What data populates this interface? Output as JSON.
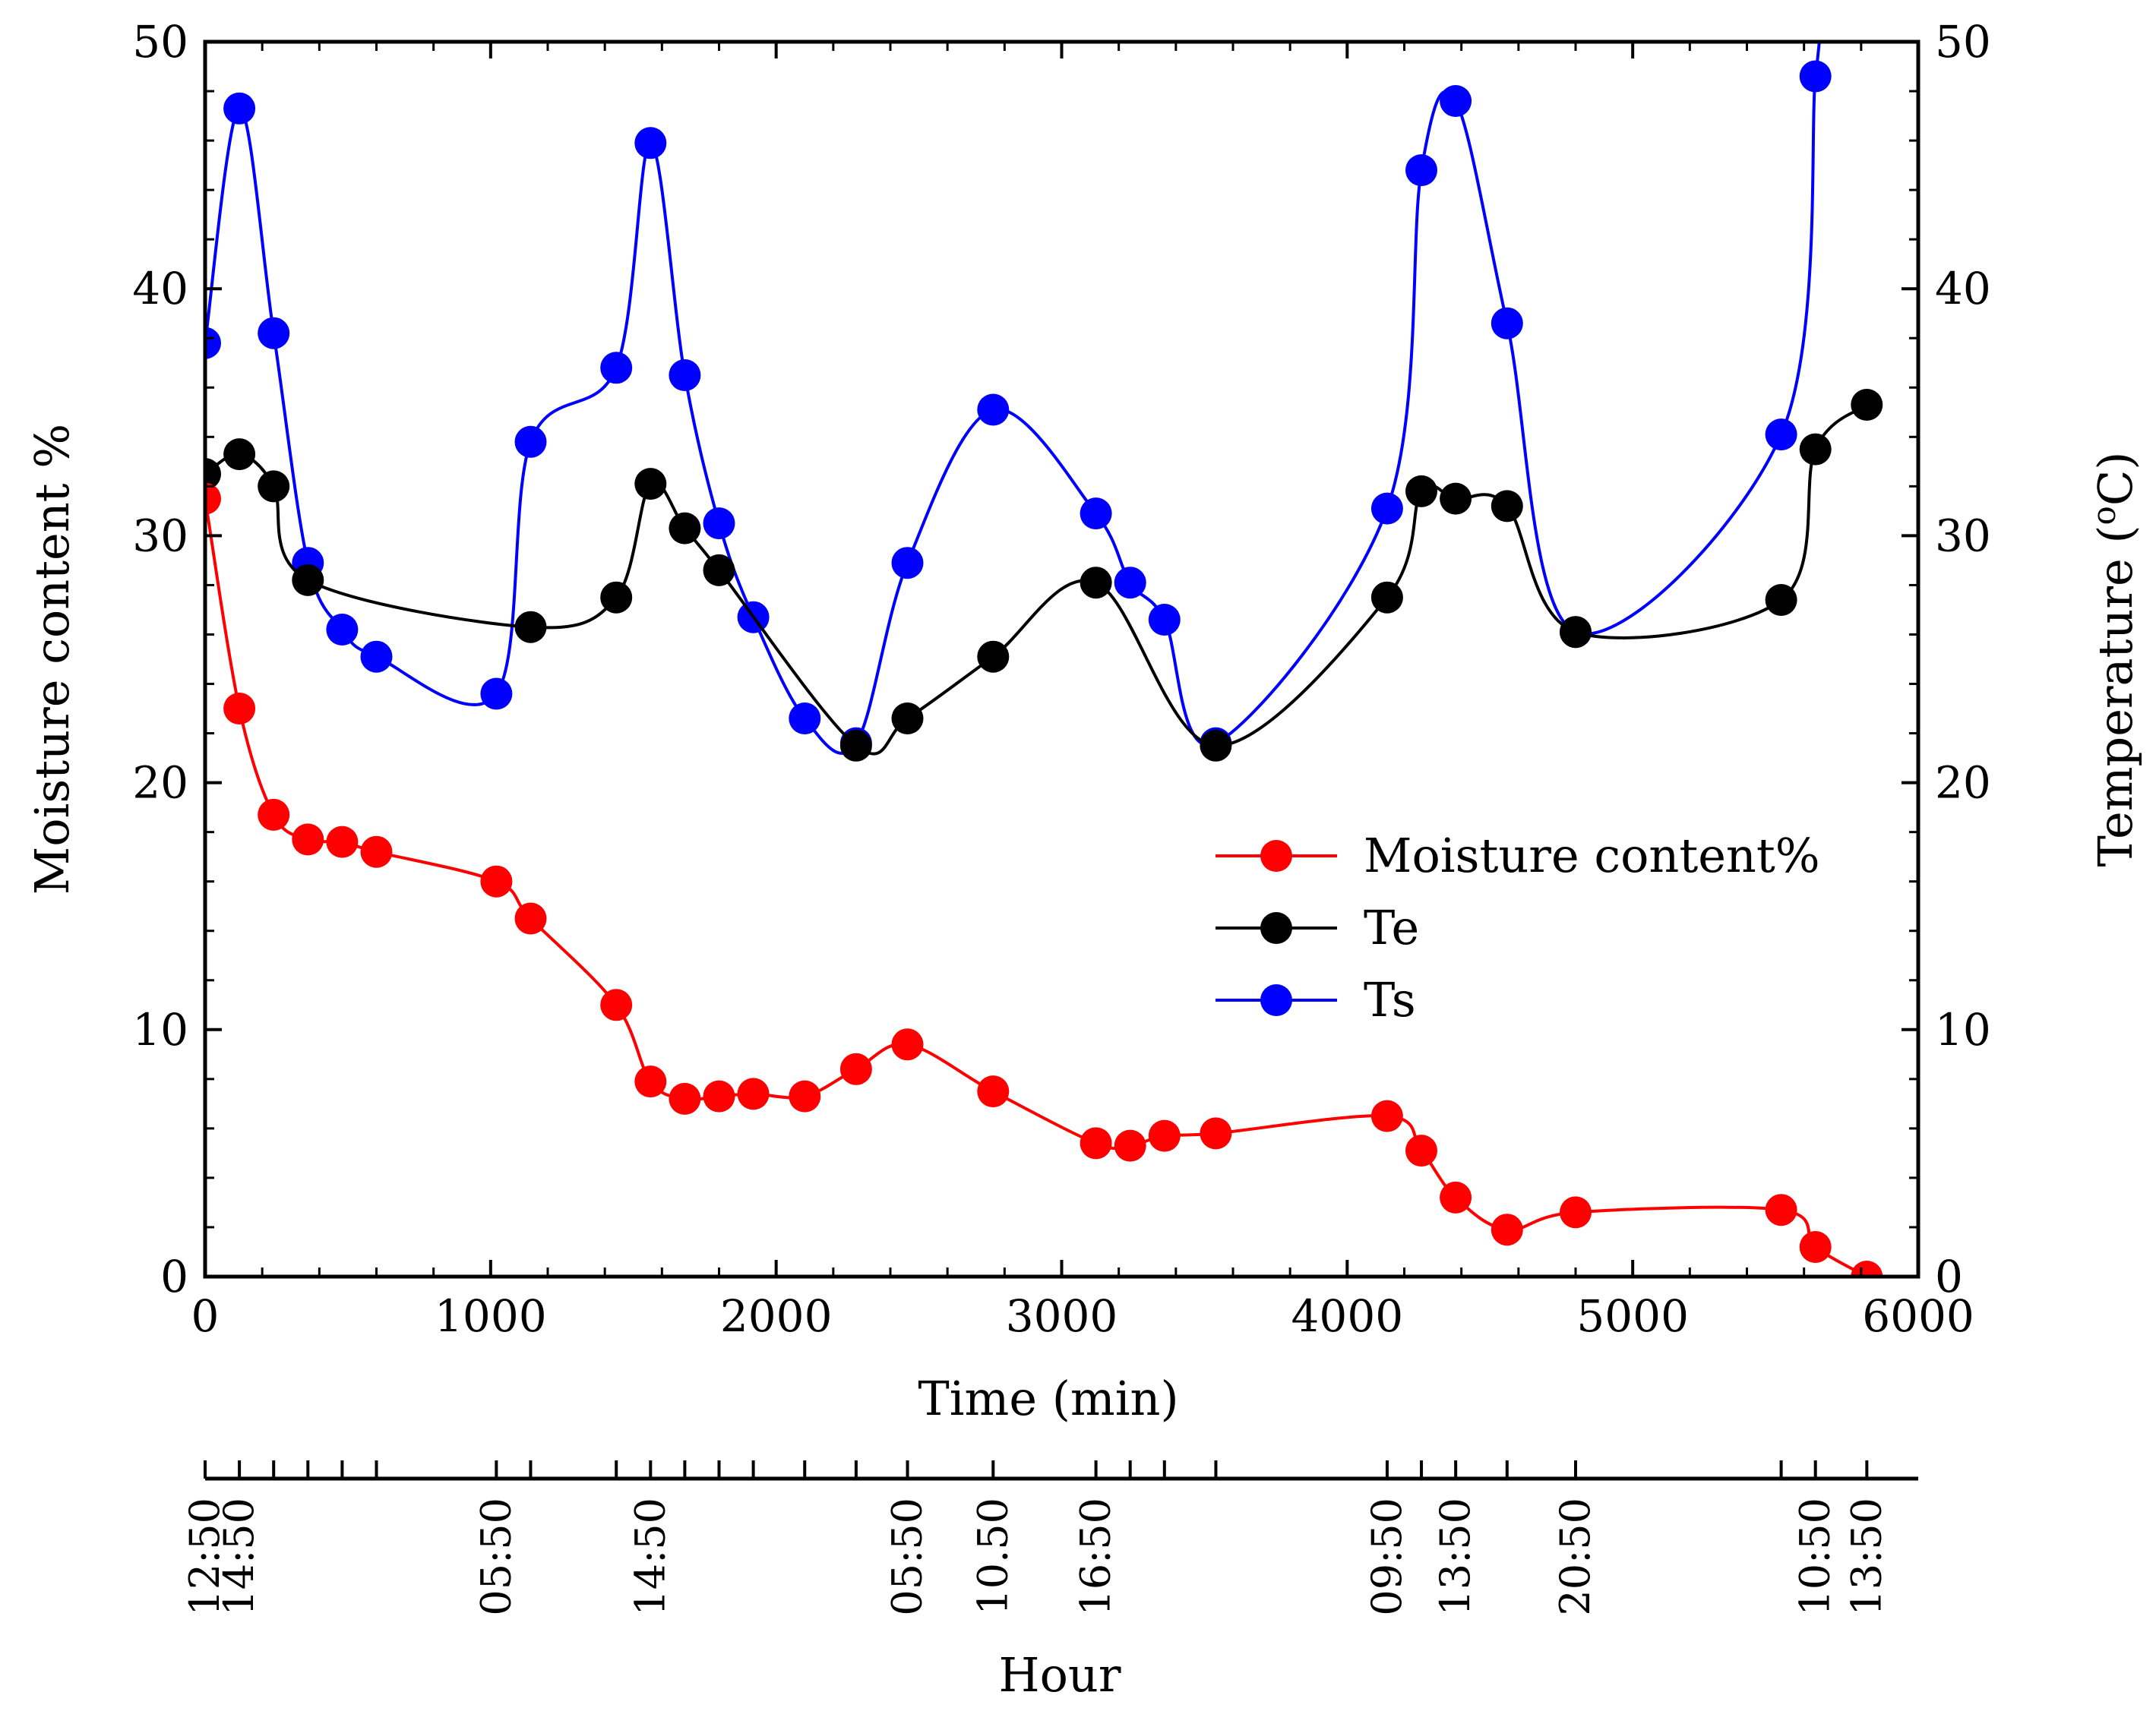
{
  "chart_data": {
    "type": "line",
    "xlabel": "Time (min)",
    "ylabel": "Moisture content %",
    "y2label": "Temperature (",
    "y2label_sup": "o",
    "y2label_end": "C)",
    "secondary_xlabel": "Hour",
    "xlim": [
      0,
      6000
    ],
    "ylim": [
      0,
      50
    ],
    "y2lim": [
      0,
      50
    ],
    "xticks": [
      0,
      1000,
      2000,
      3000,
      4000,
      5000,
      6000
    ],
    "yticks": [
      0,
      10,
      20,
      30,
      40,
      50
    ],
    "y2ticks": [
      0,
      10,
      20,
      30,
      40,
      50
    ],
    "grid": false,
    "legend_position": "middle-right",
    "series": [
      {
        "name": "Moisture content%",
        "color": "#ff0000",
        "axis": "left",
        "x": [
          0,
          120,
          240,
          360,
          480,
          600,
          1020,
          1140,
          1440,
          1560,
          1680,
          1800,
          1920,
          2100,
          2280,
          2460,
          2760,
          3120,
          3240,
          3360,
          3540,
          4140,
          4260,
          4380,
          4560,
          4800,
          5520,
          5640,
          5820
        ],
        "y": [
          31.5,
          23.0,
          18.7,
          17.7,
          17.6,
          17.2,
          16.0,
          14.5,
          11.0,
          7.9,
          7.2,
          7.3,
          7.4,
          7.3,
          8.4,
          9.4,
          7.5,
          5.4,
          5.3,
          5.7,
          5.8,
          6.5,
          5.1,
          3.2,
          1.9,
          2.6,
          2.7,
          1.2,
          0.0
        ]
      },
      {
        "name": "Te",
        "color": "#000000",
        "axis": "right",
        "x": [
          0,
          120,
          240,
          360,
          1140,
          1440,
          1560,
          1680,
          1800,
          2280,
          2460,
          2760,
          3120,
          3540,
          4140,
          4260,
          4380,
          4560,
          4800,
          5520,
          5640,
          5820
        ],
        "y": [
          32.5,
          33.3,
          32.0,
          28.2,
          26.3,
          27.5,
          32.1,
          30.3,
          28.6,
          21.5,
          22.6,
          25.1,
          28.1,
          21.5,
          27.5,
          31.8,
          31.5,
          31.2,
          26.1,
          27.4,
          33.5,
          35.3
        ]
      },
      {
        "name": "Ts",
        "color": "#0000ff",
        "axis": "right",
        "x": [
          0,
          120,
          240,
          360,
          480,
          600,
          1020,
          1140,
          1440,
          1560,
          1680,
          1800,
          1920,
          2100,
          2280,
          2460,
          2760,
          3120,
          3240,
          3360,
          3540,
          4140,
          4260,
          4380,
          4560,
          4800,
          5520,
          5640
        ],
        "y": [
          37.8,
          47.3,
          38.2,
          28.9,
          26.2,
          25.1,
          23.6,
          33.8,
          36.8,
          45.9,
          36.5,
          30.5,
          26.7,
          22.6,
          21.6,
          28.9,
          35.1,
          30.9,
          28.1,
          26.6,
          21.6,
          31.1,
          44.8,
          47.6,
          38.6,
          26.1,
          34.1,
          48.6
        ]
      }
    ],
    "hour_ticks_min": [
      0,
      120,
      240,
      360,
      480,
      600,
      1020,
      1140,
      1440,
      1560,
      1680,
      1800,
      1920,
      2100,
      2280,
      2460,
      2760,
      3120,
      3240,
      3360,
      3540,
      4140,
      4260,
      4380,
      4560,
      4800,
      5520,
      5640,
      5820
    ],
    "hour_labels": [
      {
        "x": 0,
        "label": "12:50"
      },
      {
        "x": 120,
        "label": "14:50"
      },
      {
        "x": 1020,
        "label": "05:50"
      },
      {
        "x": 1560,
        "label": "14:50"
      },
      {
        "x": 2460,
        "label": "05:50"
      },
      {
        "x": 2760,
        "label": "10.50"
      },
      {
        "x": 3120,
        "label": "16:50"
      },
      {
        "x": 4140,
        "label": "09:50"
      },
      {
        "x": 4380,
        "label": "13:50"
      },
      {
        "x": 4800,
        "label": "20:50"
      },
      {
        "x": 5640,
        "label": "10:50"
      },
      {
        "x": 5820,
        "label": "13:50"
      }
    ]
  }
}
